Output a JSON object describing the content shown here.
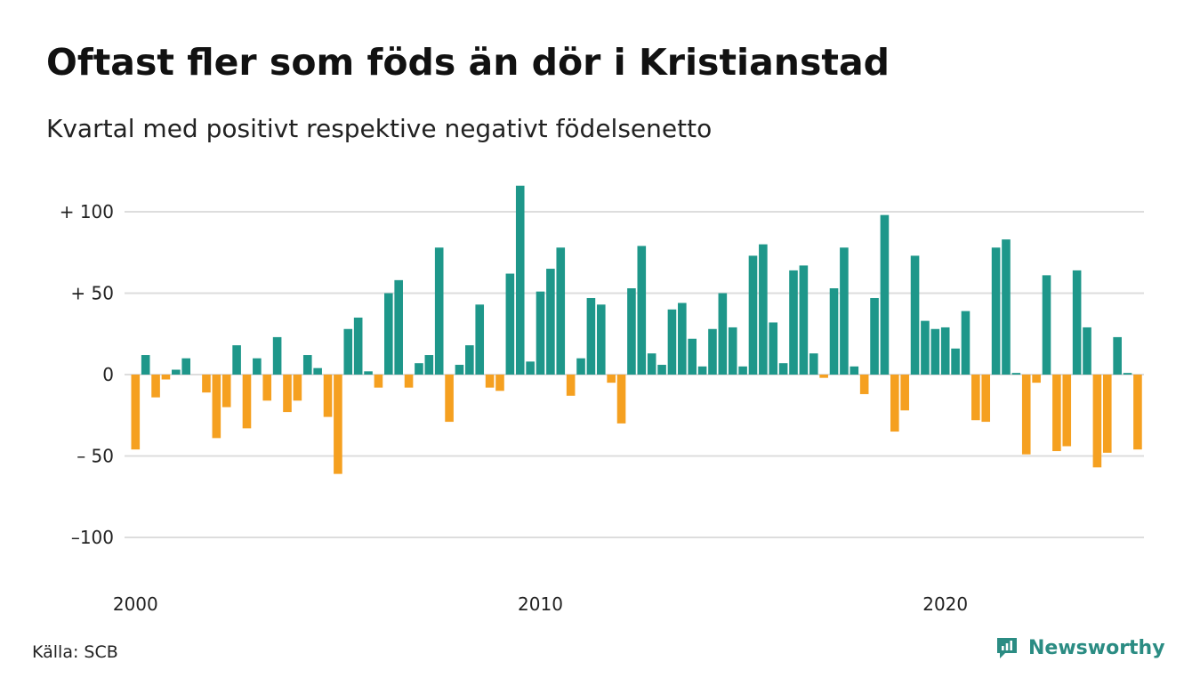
{
  "header": {
    "title": "Oftast fler som föds än dör i Kristianstad",
    "subtitle": "Kvartal med positivt respektive negativt födelsenetto"
  },
  "footer": {
    "source": "Källa: SCB",
    "brand": "Newsworthy",
    "brand_icon": "newsworthy-logo-icon"
  },
  "colors": {
    "positive": "#1e978a",
    "negative": "#f5a020",
    "grid": "#dddddd",
    "brand": "#2b8c83"
  },
  "chart_data": {
    "type": "bar",
    "title": "Oftast fler som föds än dör i Kristianstad",
    "subtitle": "Kvartal med positivt respektive negativt födelsenetto",
    "xlabel": "",
    "ylabel": "",
    "ylim": [
      -120,
      125
    ],
    "grid": true,
    "y_ticks": [
      100,
      50,
      0,
      -50,
      -100
    ],
    "y_tick_labels": [
      "+ 100",
      "+  50",
      "0",
      "– 50",
      "–100"
    ],
    "x_tick_labels": [
      "2000",
      "2010",
      "2020"
    ],
    "x_tick_years": [
      2000,
      2010,
      2020
    ],
    "first_year": 2000,
    "periods_per_year": 4,
    "values": [
      -46,
      12,
      -14,
      -3,
      3,
      10,
      0,
      -11,
      -39,
      -20,
      18,
      -33,
      10,
      -16,
      23,
      -23,
      -16,
      12,
      4,
      -26,
      -61,
      28,
      35,
      2,
      -8,
      50,
      58,
      -8,
      7,
      12,
      78,
      -29,
      6,
      18,
      43,
      -8,
      -10,
      62,
      116,
      8,
      51,
      65,
      78,
      -13,
      10,
      47,
      43,
      -5,
      -30,
      53,
      79,
      13,
      6,
      40,
      44,
      22,
      5,
      28,
      50,
      29,
      5,
      73,
      80,
      32,
      7,
      64,
      67,
      13,
      -2,
      53,
      78,
      5,
      -12,
      47,
      98,
      -35,
      -22,
      73,
      33,
      28,
      29,
      16,
      39,
      -28,
      -29,
      78,
      83,
      1,
      -49,
      -5,
      61,
      -47,
      -44,
      64,
      29,
      -57,
      -48,
      23,
      1,
      -46
    ]
  }
}
